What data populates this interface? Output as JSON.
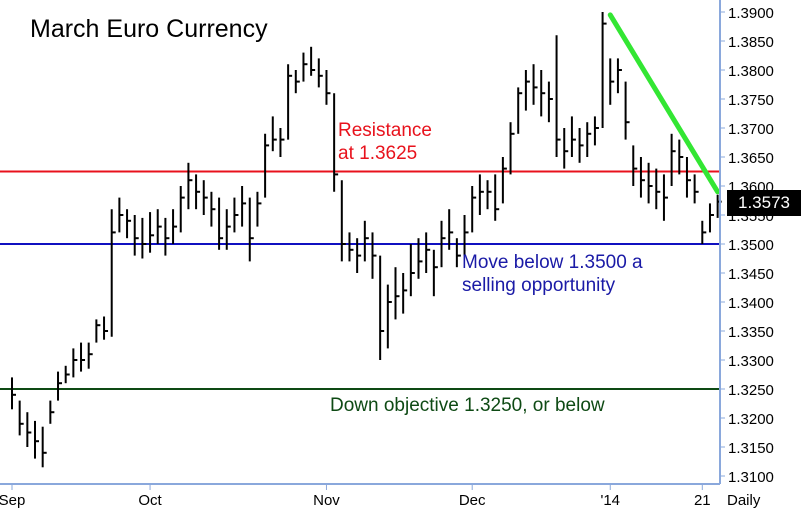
{
  "chart_data": {
    "type": "bar",
    "title": "March Euro Currency",
    "period": "Daily",
    "ylim": [
      1.31,
      1.39
    ],
    "y_ticks": [
      "1.3900",
      "1.3850",
      "1.3800",
      "1.3750",
      "1.3700",
      "1.3650",
      "1.3600",
      "1.3550",
      "1.3500",
      "1.3450",
      "1.3400",
      "1.3350",
      "1.3300",
      "1.3250",
      "1.3200",
      "1.3150",
      "1.3100"
    ],
    "x_ticks": [
      {
        "label": "Sep",
        "bar": 0
      },
      {
        "label": "Oct",
        "bar": 18
      },
      {
        "label": "Nov",
        "bar": 41
      },
      {
        "label": "Dec",
        "bar": 60
      },
      {
        "label": "'14",
        "bar": 78
      },
      {
        "label": "21",
        "bar": 90
      }
    ],
    "last_price": "1.3573",
    "bars": [
      {
        "h": 1.327,
        "l": 1.3215,
        "c": 1.324
      },
      {
        "h": 1.323,
        "l": 1.317,
        "c": 1.319
      },
      {
        "h": 1.321,
        "l": 1.315,
        "c": 1.3175
      },
      {
        "h": 1.3195,
        "l": 1.313,
        "c": 1.316
      },
      {
        "h": 1.3185,
        "l": 1.3115,
        "c": 1.314
      },
      {
        "h": 1.323,
        "l": 1.319,
        "c": 1.321
      },
      {
        "h": 1.328,
        "l": 1.323,
        "c": 1.326
      },
      {
        "h": 1.329,
        "l": 1.326,
        "c": 1.3275
      },
      {
        "h": 1.332,
        "l": 1.327,
        "c": 1.33
      },
      {
        "h": 1.333,
        "l": 1.328,
        "c": 1.33
      },
      {
        "h": 1.333,
        "l": 1.3285,
        "c": 1.331
      },
      {
        "h": 1.337,
        "l": 1.333,
        "c": 1.336
      },
      {
        "h": 1.3375,
        "l": 1.3335,
        "c": 1.335
      },
      {
        "h": 1.356,
        "l": 1.334,
        "c": 1.352
      },
      {
        "h": 1.358,
        "l": 1.352,
        "c": 1.355
      },
      {
        "h": 1.356,
        "l": 1.351,
        "c": 1.354
      },
      {
        "h": 1.355,
        "l": 1.348,
        "c": 1.351
      },
      {
        "h": 1.3545,
        "l": 1.3475,
        "c": 1.35
      },
      {
        "h": 1.3555,
        "l": 1.3485,
        "c": 1.3515
      },
      {
        "h": 1.356,
        "l": 1.35,
        "c": 1.353
      },
      {
        "h": 1.3545,
        "l": 1.348,
        "c": 1.351
      },
      {
        "h": 1.356,
        "l": 1.35,
        "c": 1.353
      },
      {
        "h": 1.36,
        "l": 1.352,
        "c": 1.358
      },
      {
        "h": 1.364,
        "l": 1.356,
        "c": 1.361
      },
      {
        "h": 1.362,
        "l": 1.356,
        "c": 1.359
      },
      {
        "h": 1.361,
        "l": 1.355,
        "c": 1.358
      },
      {
        "h": 1.359,
        "l": 1.353,
        "c": 1.356
      },
      {
        "h": 1.358,
        "l": 1.349,
        "c": 1.351
      },
      {
        "h": 1.356,
        "l": 1.349,
        "c": 1.353
      },
      {
        "h": 1.358,
        "l": 1.352,
        "c": 1.355
      },
      {
        "h": 1.36,
        "l": 1.353,
        "c": 1.357
      },
      {
        "h": 1.358,
        "l": 1.347,
        "c": 1.351
      },
      {
        "h": 1.359,
        "l": 1.353,
        "c": 1.357
      },
      {
        "h": 1.369,
        "l": 1.358,
        "c": 1.367
      },
      {
        "h": 1.372,
        "l": 1.366,
        "c": 1.368
      },
      {
        "h": 1.37,
        "l": 1.365,
        "c": 1.368
      },
      {
        "h": 1.381,
        "l": 1.368,
        "c": 1.379
      },
      {
        "h": 1.38,
        "l": 1.376,
        "c": 1.378
      },
      {
        "h": 1.383,
        "l": 1.378,
        "c": 1.381
      },
      {
        "h": 1.384,
        "l": 1.379,
        "c": 1.38
      },
      {
        "h": 1.382,
        "l": 1.377,
        "c": 1.379
      },
      {
        "h": 1.38,
        "l": 1.374,
        "c": 1.376
      },
      {
        "h": 1.376,
        "l": 1.359,
        "c": 1.362
      },
      {
        "h": 1.361,
        "l": 1.347,
        "c": 1.35
      },
      {
        "h": 1.352,
        "l": 1.347,
        "c": 1.349
      },
      {
        "h": 1.351,
        "l": 1.345,
        "c": 1.348
      },
      {
        "h": 1.354,
        "l": 1.347,
        "c": 1.351
      },
      {
        "h": 1.352,
        "l": 1.344,
        "c": 1.348
      },
      {
        "h": 1.348,
        "l": 1.33,
        "c": 1.335
      },
      {
        "h": 1.343,
        "l": 1.332,
        "c": 1.34
      },
      {
        "h": 1.346,
        "l": 1.337,
        "c": 1.341
      },
      {
        "h": 1.345,
        "l": 1.338,
        "c": 1.342
      },
      {
        "h": 1.35,
        "l": 1.341,
        "c": 1.345
      },
      {
        "h": 1.351,
        "l": 1.344,
        "c": 1.347
      },
      {
        "h": 1.352,
        "l": 1.345,
        "c": 1.349
      },
      {
        "h": 1.349,
        "l": 1.341,
        "c": 1.346
      },
      {
        "h": 1.354,
        "l": 1.346,
        "c": 1.351
      },
      {
        "h": 1.356,
        "l": 1.349,
        "c": 1.352
      },
      {
        "h": 1.351,
        "l": 1.346,
        "c": 1.348
      },
      {
        "h": 1.355,
        "l": 1.348,
        "c": 1.352
      },
      {
        "h": 1.36,
        "l": 1.352,
        "c": 1.358
      },
      {
        "h": 1.362,
        "l": 1.355,
        "c": 1.359
      },
      {
        "h": 1.361,
        "l": 1.356,
        "c": 1.359
      },
      {
        "h": 1.362,
        "l": 1.354,
        "c": 1.356
      },
      {
        "h": 1.365,
        "l": 1.357,
        "c": 1.363
      },
      {
        "h": 1.371,
        "l": 1.362,
        "c": 1.369
      },
      {
        "h": 1.377,
        "l": 1.369,
        "c": 1.376
      },
      {
        "h": 1.38,
        "l": 1.373,
        "c": 1.378
      },
      {
        "h": 1.381,
        "l": 1.374,
        "c": 1.377
      },
      {
        "h": 1.38,
        "l": 1.372,
        "c": 1.376
      },
      {
        "h": 1.378,
        "l": 1.371,
        "c": 1.375
      },
      {
        "h": 1.386,
        "l": 1.365,
        "c": 1.368
      },
      {
        "h": 1.37,
        "l": 1.363,
        "c": 1.366
      },
      {
        "h": 1.372,
        "l": 1.365,
        "c": 1.368
      },
      {
        "h": 1.37,
        "l": 1.364,
        "c": 1.367
      },
      {
        "h": 1.371,
        "l": 1.365,
        "c": 1.369
      },
      {
        "h": 1.372,
        "l": 1.367,
        "c": 1.37
      },
      {
        "h": 1.39,
        "l": 1.37,
        "c": 1.388
      },
      {
        "h": 1.382,
        "l": 1.374,
        "c": 1.378
      },
      {
        "h": 1.382,
        "l": 1.376,
        "c": 1.38
      },
      {
        "h": 1.378,
        "l": 1.368,
        "c": 1.371
      },
      {
        "h": 1.367,
        "l": 1.36,
        "c": 1.363
      },
      {
        "h": 1.365,
        "l": 1.358,
        "c": 1.361
      },
      {
        "h": 1.364,
        "l": 1.357,
        "c": 1.36
      },
      {
        "h": 1.363,
        "l": 1.356,
        "c": 1.359
      },
      {
        "h": 1.362,
        "l": 1.354,
        "c": 1.358
      },
      {
        "h": 1.369,
        "l": 1.36,
        "c": 1.366
      },
      {
        "h": 1.368,
        "l": 1.362,
        "c": 1.365
      },
      {
        "h": 1.365,
        "l": 1.358,
        "c": 1.361
      },
      {
        "h": 1.362,
        "l": 1.357,
        "c": 1.359
      },
      {
        "h": 1.354,
        "l": 1.35,
        "c": 1.352
      },
      {
        "h": 1.357,
        "l": 1.352,
        "c": 1.355
      },
      {
        "h": 1.3585,
        "l": 1.3545,
        "c": 1.3573
      }
    ],
    "lines": [
      {
        "name": "resistance",
        "value": 1.3625,
        "color": "#e8121c"
      },
      {
        "name": "support",
        "value": 1.35,
        "color": "#1010c0"
      },
      {
        "name": "objective",
        "value": 1.325,
        "color": "#0e4a14"
      }
    ],
    "trendline": {
      "from": {
        "bar": 78,
        "value": 1.3895
      },
      "to": {
        "bar": 92,
        "value": 1.359
      },
      "color": "#33e633"
    },
    "annotations": {
      "resistance_line1": "Resistance",
      "resistance_line2": "at 1.3625",
      "sell_line1": "Move below 1.3500 a",
      "sell_line2": "selling opportunity",
      "objective": "Down objective 1.3250, or below"
    },
    "annotation_colors": {
      "resistance": "#e8121c",
      "sell": "#1a1aa6",
      "objective": "#0e4a14"
    },
    "axis_color": "#8aa8dc",
    "bar_color": "#000000"
  }
}
